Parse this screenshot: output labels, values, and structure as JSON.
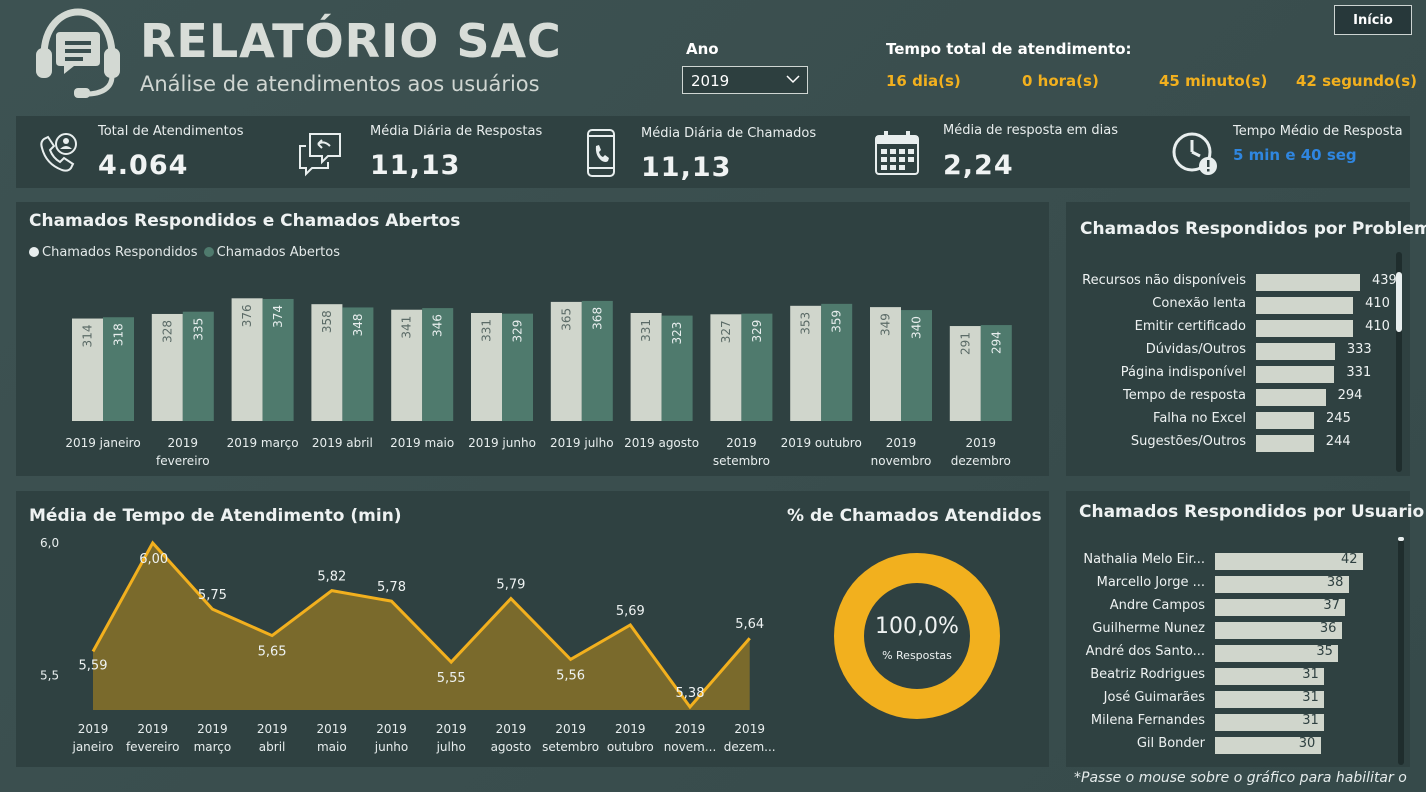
{
  "header": {
    "title": "RELATÓRIO SAC",
    "subtitle": "Análise de atendimentos aos usuários",
    "logo_icon": "headset-chat-icon",
    "home_button": "Início"
  },
  "filter": {
    "label": "Ano",
    "selected": "2019"
  },
  "total_time": {
    "label": "Tempo total de atendimento:",
    "days": "16 dia(s)",
    "hours": "0 hora(s)",
    "minutes": "45 minuto(s)",
    "seconds": "42 segundo(s)"
  },
  "kpis": [
    {
      "label": "Total de Atendimentos",
      "value": "4.064",
      "icon": "phone-user-icon"
    },
    {
      "label": "Média Diária de Respostas",
      "value": "11,13",
      "icon": "chat-reply-icon"
    },
    {
      "label": "Média Diária de Chamados",
      "value": "11,13",
      "icon": "smartphone-call-icon"
    },
    {
      "label": "Média de resposta em dias",
      "value": "2,24",
      "icon": "calendar-icon"
    },
    {
      "label": "Tempo Médio de Resposta",
      "value": "5 min e 40 seg",
      "icon": "clock-alert-icon"
    }
  ],
  "colors": {
    "accent": "#f2b01e",
    "series_answered": "#d0d6cc",
    "series_opened": "#4f7a6d",
    "panel": "#2f4141",
    "blue_text": "#2f86e0"
  },
  "chart_data": [
    {
      "type": "bar",
      "title": "Chamados Respondidos e Chamados Abertos",
      "categories": [
        "2019 janeiro",
        "2019 fevereiro",
        "2019 março",
        "2019 abril",
        "2019 maio",
        "2019 junho",
        "2019 julho",
        "2019 agosto",
        "2019 setembro",
        "2019 outubro",
        "2019 novembro",
        "2019 dezembro"
      ],
      "category_lines": [
        [
          "2019 janeiro"
        ],
        [
          "2019",
          "fevereiro"
        ],
        [
          "2019 março"
        ],
        [
          "2019 abril"
        ],
        [
          "2019 maio"
        ],
        [
          "2019 junho"
        ],
        [
          "2019 julho"
        ],
        [
          "2019 agosto"
        ],
        [
          "2019",
          "setembro"
        ],
        [
          "2019 outubro"
        ],
        [
          "2019",
          "novembro"
        ],
        [
          "2019",
          "dezembro"
        ]
      ],
      "series": [
        {
          "name": "Chamados Respondidos",
          "values": [
            314,
            328,
            376,
            358,
            341,
            331,
            365,
            331,
            327,
            353,
            349,
            291
          ]
        },
        {
          "name": "Chamados Abertos",
          "values": [
            318,
            335,
            374,
            348,
            346,
            329,
            368,
            323,
            329,
            359,
            340,
            294
          ]
        }
      ],
      "legend": "top-left",
      "ylim": [
        0,
        380
      ]
    },
    {
      "type": "area",
      "title": "Média de Tempo de Atendimento (min)",
      "x_lines": [
        [
          "2019",
          "janeiro"
        ],
        [
          "2019",
          "fevereiro"
        ],
        [
          "2019",
          "março"
        ],
        [
          "2019",
          "abril"
        ],
        [
          "2019",
          "maio"
        ],
        [
          "2019",
          "junho"
        ],
        [
          "2019",
          "julho"
        ],
        [
          "2019",
          "agosto"
        ],
        [
          "2019",
          "setembro"
        ],
        [
          "2019",
          "outubro"
        ],
        [
          "2019",
          "novem..."
        ],
        [
          "2019",
          "dezem..."
        ]
      ],
      "values": [
        5.59,
        6.0,
        5.75,
        5.65,
        5.82,
        5.78,
        5.55,
        5.79,
        5.56,
        5.69,
        5.38,
        5.64
      ],
      "value_labels": [
        "5,59",
        "6,00",
        "5,75",
        "5,65",
        "5,82",
        "5,78",
        "5,55",
        "5,79",
        "5,56",
        "5,69",
        "5,38",
        "5,64"
      ],
      "yticks": [
        "6,0",
        "5,5"
      ],
      "ylim": [
        5.38,
        6.0
      ]
    },
    {
      "type": "pie",
      "title": "% de Chamados Atendidos",
      "center_value": "100,0%",
      "center_label": "% Respostas",
      "values": [
        100.0
      ]
    },
    {
      "type": "bar",
      "orientation": "horizontal",
      "title": "Chamados Respondidos por Problema",
      "categories": [
        "Recursos não disponíveis",
        "Conexão lenta",
        "Emitir certificado",
        "Dúvidas/Outros",
        "Página indisponível",
        "Tempo de resposta",
        "Falha no Excel",
        "Sugestões/Outros"
      ],
      "values": [
        439,
        410,
        410,
        333,
        331,
        294,
        245,
        244
      ],
      "xlim": [
        0,
        439
      ]
    },
    {
      "type": "bar",
      "orientation": "horizontal",
      "title": "Chamados Respondidos por Usuario",
      "categories": [
        "Nathalia Melo Eir...",
        "Marcello Jorge ...",
        "Andre Campos",
        "Guilherme Nunez",
        "André dos Santo...",
        "Beatriz Rodrigues",
        "José Guimarães",
        "Milena Fernandes",
        "Gil Bonder"
      ],
      "values": [
        42,
        38,
        37,
        36,
        35,
        31,
        31,
        31,
        30
      ],
      "xlim": [
        0,
        42
      ]
    }
  ],
  "footer_note": "*Passe o mouse sobre o gráfico para habilitar o"
}
